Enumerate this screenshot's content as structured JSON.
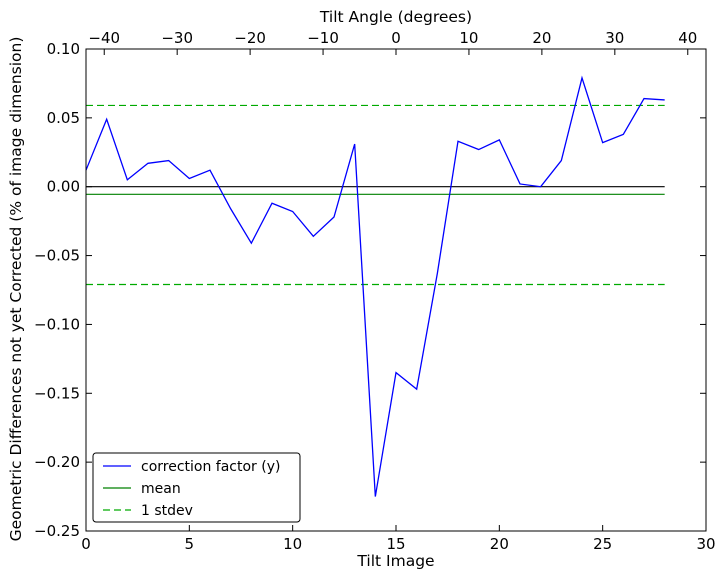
{
  "chart_data": {
    "type": "line",
    "xlabel": "Tilt Image",
    "ylabel": "Geometric Differences not yet Corrected (% of image dimension)",
    "x2label": "Tilt Angle (degrees)",
    "xlim": [
      0,
      30
    ],
    "ylim": [
      -0.25,
      0.1
    ],
    "x2lim": [
      -42.5,
      42.5
    ],
    "grid": false,
    "legend_position": "lower-left",
    "xticks": [
      0,
      5,
      10,
      15,
      20,
      25,
      30
    ],
    "xtick_labels": [
      "0",
      "5",
      "10",
      "15",
      "20",
      "25",
      "30"
    ],
    "yticks": [
      -0.25,
      -0.2,
      -0.15,
      -0.1,
      -0.05,
      0.0,
      0.05,
      0.1
    ],
    "ytick_labels": [
      "−0.25",
      "−0.20",
      "−0.15",
      "−0.10",
      "−0.05",
      "0.00",
      "0.05",
      "0.10"
    ],
    "x2ticks": [
      -40,
      -30,
      -20,
      -10,
      0,
      10,
      20,
      30,
      40
    ],
    "x2tick_labels": [
      "−40",
      "−30",
      "−20",
      "−10",
      "0",
      "10",
      "20",
      "30",
      "40"
    ],
    "series": [
      {
        "name": "correction factor (y)",
        "color": "#0000ff",
        "style": "solid",
        "x": [
          0,
          1,
          2,
          3,
          4,
          5,
          6,
          7,
          8,
          9,
          10,
          11,
          12,
          13,
          14,
          15,
          16,
          17,
          18,
          19,
          20,
          21,
          22,
          23,
          24,
          25,
          26,
          27,
          28
        ],
        "values": [
          0.012,
          0.049,
          0.005,
          0.017,
          0.019,
          0.006,
          0.012,
          -0.016,
          -0.041,
          -0.012,
          -0.018,
          -0.036,
          -0.022,
          0.031,
          -0.225,
          -0.135,
          -0.147,
          -0.063,
          0.033,
          0.027,
          0.034,
          0.002,
          0.0,
          0.019,
          0.079,
          0.032,
          0.038,
          0.064,
          0.063
        ]
      },
      {
        "name": "mean",
        "color": "#008000",
        "style": "solid",
        "x": [
          0,
          28
        ],
        "values": [
          -0.0055,
          -0.0055
        ]
      },
      {
        "name": "1 stdev",
        "color": "#00aa00",
        "style": "dashed",
        "x": [
          0,
          28
        ],
        "values": [
          0.059,
          0.059
        ]
      },
      {
        "name": "",
        "color": "#00aa00",
        "style": "dashed",
        "x": [
          0,
          28
        ],
        "values": [
          -0.071,
          -0.071
        ]
      },
      {
        "name": "",
        "color": "#000000",
        "style": "solid",
        "x": [
          0,
          28
        ],
        "values": [
          0.0,
          0.0
        ]
      }
    ],
    "legend": [
      {
        "label": "correction factor (y)",
        "color": "#0000ff",
        "style": "solid"
      },
      {
        "label": "mean",
        "color": "#008000",
        "style": "solid"
      },
      {
        "label": "1 stdev",
        "color": "#00aa00",
        "style": "dashed"
      }
    ]
  }
}
